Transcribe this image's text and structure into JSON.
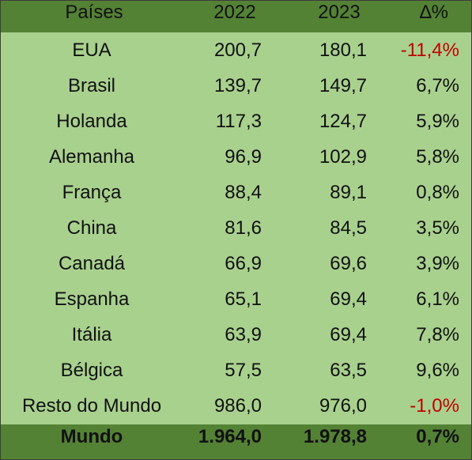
{
  "table": {
    "header": [
      "Países",
      "2022",
      "2023",
      "∆%"
    ],
    "rows": [
      [
        "EUA",
        "200,7",
        "180,1",
        "-11,4%"
      ],
      [
        "Brasil",
        "139,7",
        "149,7",
        "6,7%"
      ],
      [
        "Holanda",
        "117,3",
        "124,7",
        "5,9%"
      ],
      [
        "Alemanha",
        "96,9",
        "102,9",
        "5,8%"
      ],
      [
        "França",
        "88,4",
        "89,1",
        "0,8%"
      ],
      [
        "China",
        "81,6",
        "84,5",
        "3,5%"
      ],
      [
        "Canadá",
        "66,9",
        "69,6",
        "3,9%"
      ],
      [
        "Espanha",
        "65,1",
        "69,4",
        "6,1%"
      ],
      [
        "Itália",
        "63,9",
        "69,4",
        "7,8%"
      ],
      [
        "Bélgica",
        "57,5",
        "63,5",
        "9,6%"
      ],
      [
        "Resto do Mundo",
        "986,0",
        "976,0",
        "-1,0%"
      ]
    ],
    "footer": [
      "Mundo",
      "1.964,0",
      "1.978,8",
      "0,7%"
    ]
  }
}
